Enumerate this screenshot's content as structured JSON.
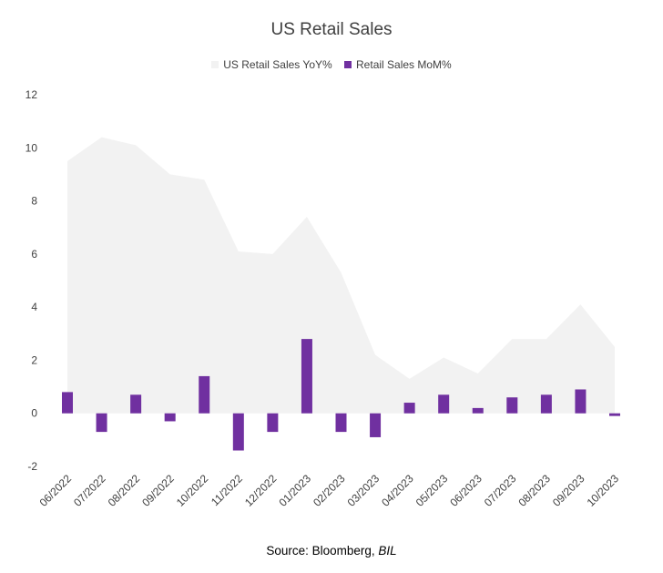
{
  "chart_data": {
    "type": "bar",
    "title": "US Retail Sales",
    "categories": [
      "06/2022",
      "07/2022",
      "08/2022",
      "09/2022",
      "10/2022",
      "11/2022",
      "12/2022",
      "01/2023",
      "02/2023",
      "03/2023",
      "04/2023",
      "05/2023",
      "06/2023",
      "07/2023",
      "08/2023",
      "09/2023",
      "10/2023"
    ],
    "series": [
      {
        "name": "US Retail Sales YoY%",
        "kind": "area",
        "color": "#f2f2f2",
        "values": [
          9.5,
          10.4,
          10.1,
          9.0,
          8.8,
          6.1,
          6.0,
          7.4,
          5.3,
          2.2,
          1.3,
          2.1,
          1.5,
          2.8,
          2.8,
          4.1,
          2.5
        ]
      },
      {
        "name": "Retail Sales MoM%",
        "kind": "bar",
        "color": "#7030a0",
        "values": [
          0.8,
          -0.7,
          0.7,
          -0.3,
          1.4,
          -1.4,
          -0.7,
          2.8,
          -0.7,
          -0.9,
          0.4,
          0.7,
          0.2,
          0.6,
          0.7,
          0.9,
          -0.1
        ]
      }
    ],
    "yticks": [
      -2,
      0,
      2,
      4,
      6,
      8,
      10,
      12
    ],
    "ylim": [
      -2,
      12
    ],
    "xlabel": "",
    "ylabel": "",
    "grid": false,
    "legend": "top-center"
  },
  "source": {
    "prefix": "Source: Bloomberg, ",
    "italic": "BIL"
  }
}
